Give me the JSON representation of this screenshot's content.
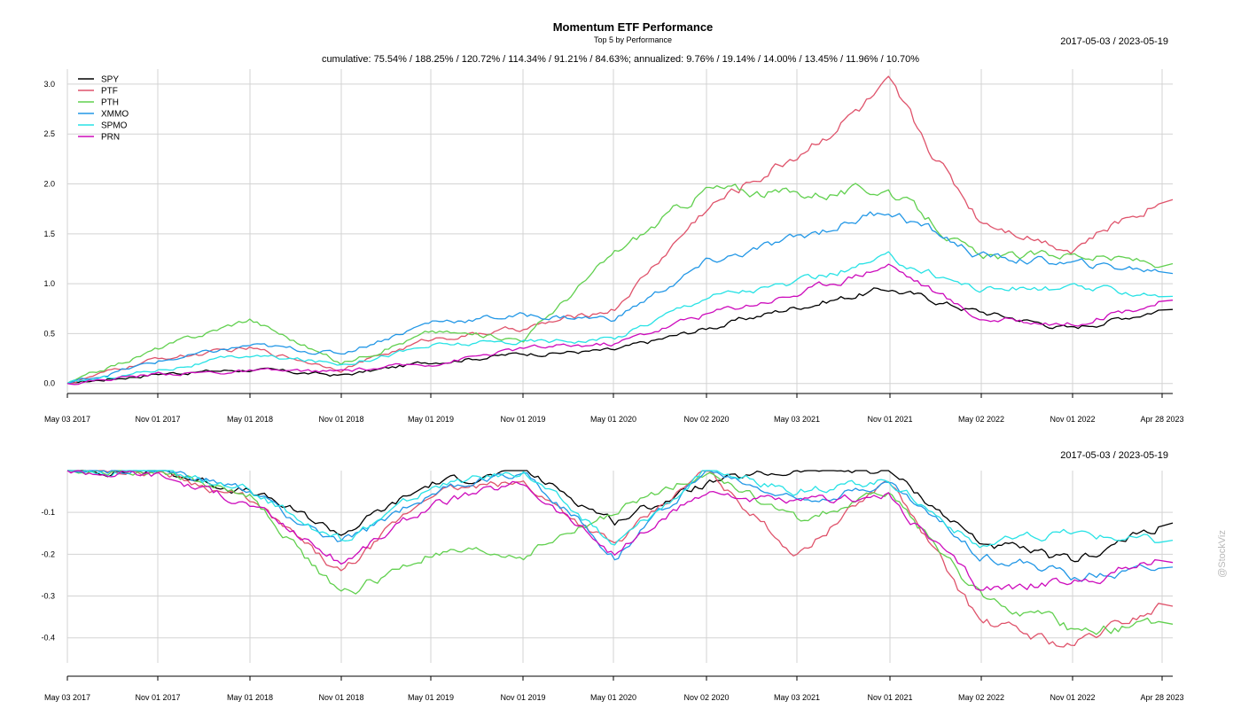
{
  "chart_data": [
    {
      "type": "line",
      "title": "Momentum ETF Performance",
      "subtitle": "Top 5 by Performance",
      "stats": "cumulative: 75.54% / 188.25% / 120.72% / 114.34% / 91.21% / 84.63%; annualized: 9.76% / 19.14% / 14.00% / 13.45% / 11.96% / 10.70%",
      "date_range": "2017-05-03 / 2023-05-19",
      "ylim": [
        -0.1,
        3.15
      ],
      "yticks": [
        "0.0",
        "0.5",
        "1.0",
        "1.5",
        "2.0",
        "2.5",
        "3.0"
      ],
      "grid": true,
      "legend_position": "top-left",
      "x_ticks": [
        "May 03 2017",
        "Nov 01 2017",
        "May 01 2018",
        "Nov 01 2018",
        "May 01 2019",
        "Nov 01 2019",
        "May 01 2020",
        "Nov 02 2020",
        "May 03 2021",
        "Nov 01 2021",
        "May 02 2022",
        "Nov 01 2022",
        "Apr 28 2023"
      ],
      "x": [
        "2017-05",
        "2017-11",
        "2018-05",
        "2018-11",
        "2019-05",
        "2019-11",
        "2020-05",
        "2020-11",
        "2021-05",
        "2021-11",
        "2022-05",
        "2022-11",
        "2023-05"
      ],
      "series": [
        {
          "name": "SPY",
          "color": "#000000",
          "values": [
            0.0,
            0.1,
            0.14,
            0.08,
            0.22,
            0.3,
            0.33,
            0.55,
            0.77,
            0.95,
            0.72,
            0.55,
            0.75
          ]
        },
        {
          "name": "PTF",
          "color": "#DF536B",
          "values": [
            0.0,
            0.25,
            0.35,
            0.15,
            0.45,
            0.55,
            0.75,
            1.75,
            2.3,
            2.95,
            1.65,
            1.35,
            1.85
          ]
        },
        {
          "name": "PTH",
          "color": "#61D04F",
          "values": [
            0.0,
            0.35,
            0.65,
            0.2,
            0.52,
            0.45,
            1.3,
            1.95,
            1.9,
            1.95,
            1.25,
            1.3,
            1.2
          ]
        },
        {
          "name": "XMMO",
          "color": "#2297E6",
          "values": [
            0.0,
            0.22,
            0.38,
            0.3,
            0.62,
            0.68,
            0.65,
            1.2,
            1.45,
            1.75,
            1.28,
            1.2,
            1.13
          ]
        },
        {
          "name": "SPMO",
          "color": "#28E2E5",
          "values": [
            0.0,
            0.14,
            0.28,
            0.2,
            0.38,
            0.42,
            0.45,
            0.88,
            1.0,
            1.25,
            0.95,
            0.95,
            0.9
          ]
        },
        {
          "name": "PRN",
          "color": "#CD0BBC",
          "values": [
            0.0,
            0.1,
            0.12,
            0.12,
            0.2,
            0.35,
            0.4,
            0.7,
            0.9,
            1.2,
            0.65,
            0.6,
            0.82
          ]
        }
      ]
    },
    {
      "type": "line",
      "date_range": "2017-05-03 / 2023-05-19",
      "ylim": [
        -0.46,
        0.0
      ],
      "yticks": [
        "-0.1",
        "-0.2",
        "-0.3",
        "-0.4"
      ],
      "grid": true,
      "x_ticks": [
        "May 03 2017",
        "Nov 01 2017",
        "May 01 2018",
        "Nov 01 2018",
        "May 01 2019",
        "Nov 01 2019",
        "May 01 2020",
        "Nov 02 2020",
        "May 03 2021",
        "Nov 01 2021",
        "May 02 2022",
        "Nov 01 2022",
        "Apr 28 2023"
      ],
      "x": [
        "2017-05",
        "2017-11",
        "2018-05",
        "2018-11",
        "2019-05",
        "2019-11",
        "2020-05",
        "2020-11",
        "2021-05",
        "2021-11",
        "2022-05",
        "2022-11",
        "2023-05"
      ],
      "series": [
        {
          "name": "SPY",
          "color": "#000000",
          "values": [
            0.0,
            0.0,
            -0.05,
            -0.15,
            -0.03,
            0.0,
            -0.12,
            -0.03,
            0.0,
            0.0,
            -0.17,
            -0.22,
            -0.13
          ]
        },
        {
          "name": "PTF",
          "color": "#DF536B",
          "values": [
            0.0,
            0.0,
            -0.07,
            -0.25,
            -0.05,
            -0.03,
            -0.18,
            0.0,
            -0.2,
            -0.02,
            -0.36,
            -0.42,
            -0.32
          ]
        },
        {
          "name": "PTH",
          "color": "#61D04F",
          "values": [
            0.0,
            0.0,
            -0.06,
            -0.3,
            -0.2,
            -0.2,
            -0.1,
            0.0,
            -0.12,
            -0.05,
            -0.3,
            -0.38,
            -0.37
          ]
        },
        {
          "name": "XMMO",
          "color": "#2297E6",
          "values": [
            0.0,
            0.0,
            -0.05,
            -0.18,
            -0.05,
            0.0,
            -0.2,
            0.0,
            -0.07,
            -0.03,
            -0.2,
            -0.25,
            -0.23
          ]
        },
        {
          "name": "SPMO",
          "color": "#28E2E5",
          "values": [
            0.0,
            0.0,
            -0.05,
            -0.17,
            -0.04,
            0.0,
            -0.18,
            0.0,
            -0.05,
            -0.02,
            -0.18,
            -0.15,
            -0.17
          ]
        },
        {
          "name": "PRN",
          "color": "#CD0BBC",
          "values": [
            0.0,
            -0.01,
            -0.08,
            -0.22,
            -0.08,
            -0.03,
            -0.2,
            -0.05,
            -0.08,
            -0.06,
            -0.28,
            -0.27,
            -0.21
          ]
        }
      ]
    }
  ],
  "watermark": "@StockViz"
}
